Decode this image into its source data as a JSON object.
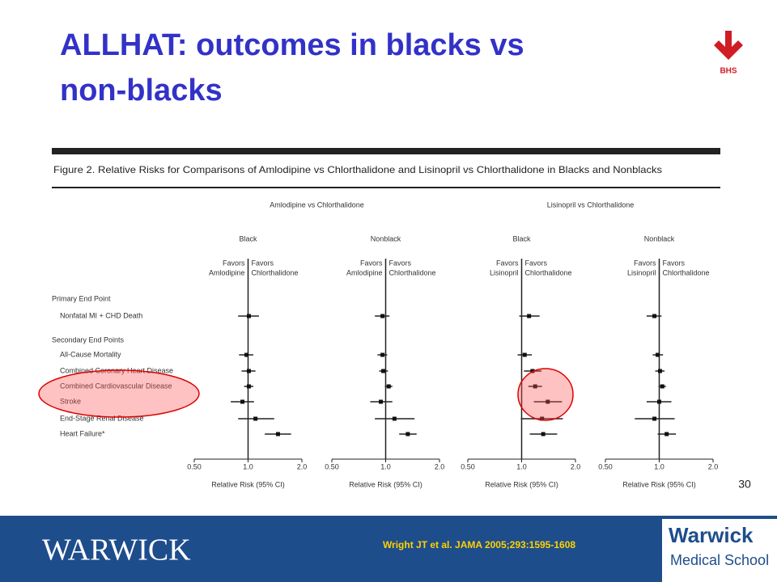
{
  "header": {
    "title_lines": [
      "ALLHAT: outcomes in blacks vs",
      "non-blacks"
    ],
    "logo": "BHS"
  },
  "page_number": "30",
  "figure": {
    "title": "Figure 2. Relative Risks for Comparisons of Amlodipine vs Chlorthalidone and Lisinopril vs Chlorthalidone in Blacks and Nonblacks",
    "groups": [
      "Amlodipine vs Chlorthalidone",
      "Lisinopril vs Chlorthalidone"
    ],
    "sections": [
      "Primary End Point",
      "Secondary End Points"
    ],
    "rows": [
      "Nonfatal MI + CHD Death",
      "All-Cause Mortality",
      "Combined Coronary Heart Disease",
      "Combined Cardiovascular Disease",
      "Stroke",
      "End-Stage Renal Disease",
      "Heart Failure*"
    ],
    "xlim": [
      0.5,
      2.0
    ],
    "xticks": [
      {
        "value": 0.5,
        "label": "0.50"
      },
      {
        "value": 1,
        "label": "1.0"
      },
      {
        "value": 2,
        "label": "2.0"
      }
    ],
    "xlabel": "Relative Risk (95% CI)",
    "panels": [
      {
        "name": "Black",
        "favors_left": [
          "Favors",
          "Amlodipine"
        ],
        "favors_right": [
          "Favors",
          "Chlorthalidone"
        ],
        "estimates": [
          1.01,
          0.98,
          1.01,
          1.01,
          0.93,
          1.1,
          1.47
        ],
        "lower": [
          0.88,
          0.89,
          0.92,
          0.95,
          0.8,
          0.88,
          1.24
        ],
        "upper": [
          1.15,
          1.07,
          1.1,
          1.07,
          1.08,
          1.4,
          1.74
        ]
      },
      {
        "name": "Nonblack",
        "favors_left": [
          "Favors",
          "Amlodipine"
        ],
        "favors_right": [
          "Favors",
          "Chlorthalidone"
        ],
        "estimates": [
          0.96,
          0.96,
          0.97,
          1.04,
          0.94,
          1.12,
          1.33
        ],
        "lower": [
          0.87,
          0.9,
          0.92,
          0.99,
          0.82,
          0.87,
          1.19
        ],
        "upper": [
          1.05,
          1.02,
          1.03,
          1.09,
          1.09,
          1.45,
          1.49
        ]
      },
      {
        "name": "Black",
        "favors_left": [
          "Favors",
          "Lisinopril"
        ],
        "favors_right": [
          "Favors",
          "Chlorthalidone"
        ],
        "estimates": [
          1.1,
          1.04,
          1.15,
          1.19,
          1.4,
          1.3,
          1.32
        ],
        "lower": [
          0.97,
          0.95,
          1.03,
          1.09,
          1.17,
          0.99,
          1.11
        ],
        "upper": [
          1.26,
          1.14,
          1.29,
          1.3,
          1.68,
          1.7,
          1.58
        ]
      },
      {
        "name": "Nonblack",
        "favors_left": [
          "Favors",
          "Lisinopril"
        ],
        "favors_right": [
          "Favors",
          "Chlorthalidone"
        ],
        "estimates": [
          0.94,
          0.98,
          1.01,
          1.04,
          1.0,
          0.94,
          1.1
        ],
        "lower": [
          0.85,
          0.92,
          0.95,
          0.99,
          0.85,
          0.73,
          0.98
        ],
        "upper": [
          1.03,
          1.05,
          1.07,
          1.09,
          1.17,
          1.22,
          1.24
        ]
      }
    ]
  },
  "footer": {
    "logo_left": "WARWICK",
    "citation": "Wright JT et al. JAMA 2005;293:1595-1608",
    "logo_right": [
      "Warwick",
      "Medical School"
    ]
  }
}
